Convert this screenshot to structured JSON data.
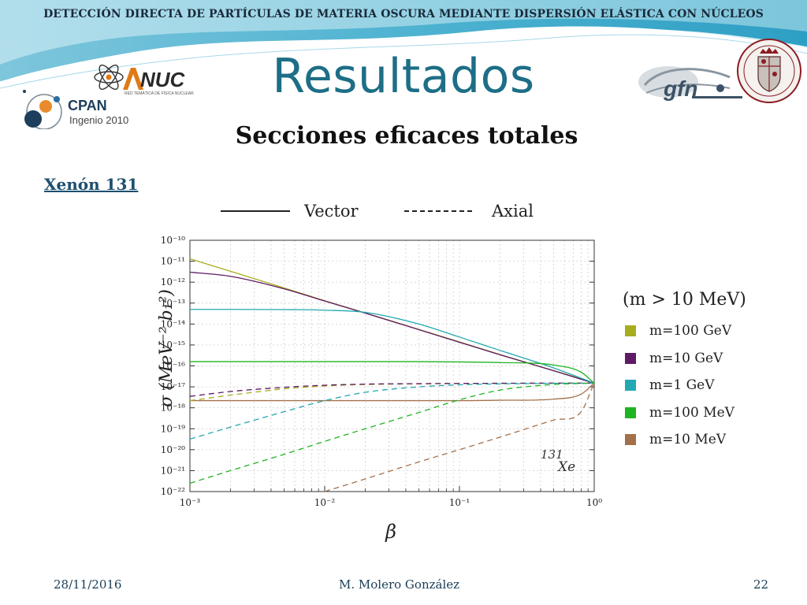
{
  "header": {
    "banner": "DETECCIÓN DIRECTA DE PARTÍCULAS DE MATERIA OSCURA MEDIANTE DISPERSIÓN ELÁSTICA CON NÚCLEOS",
    "title": "Resultados",
    "subtitle": "Secciones eficaces totales",
    "section": "Xenón 131"
  },
  "logos": {
    "anuc": {
      "text": "NUC",
      "tagline": "RED TEMÁTICA DE FÍSICA NUCLEAR"
    },
    "cpan": {
      "name": "CPAN",
      "tagline": "Ingenio 2010"
    },
    "gfn": {
      "text": "gfn"
    }
  },
  "style_legend": {
    "solid": "Vector",
    "dashed": "Axial"
  },
  "mass_legend": {
    "title": "(m > 10 MeV)",
    "items": [
      {
        "label": "m=100 GeV",
        "color": "#a8ad1e"
      },
      {
        "label": "m=10 GeV",
        "color": "#5e1a66"
      },
      {
        "label": "m=1 GeV",
        "color": "#22a8b2"
      },
      {
        "label": "m=100 MeV",
        "color": "#1fb422"
      },
      {
        "label": "m=10 MeV",
        "color": "#a4704a"
      }
    ]
  },
  "footer": {
    "date": "28/11/2016",
    "author": "M. Molero González",
    "page": "22"
  },
  "chart_data": {
    "type": "line",
    "x_scale": "log",
    "y_scale": "log",
    "xlim": [
      0.001,
      1
    ],
    "ylim": [
      1e-22,
      1e-10
    ],
    "xlabel": "β",
    "ylabel": "σ (MeV⁻² b₁²)",
    "annotation": {
      "mass_number": "131",
      "symbol": "Xe"
    },
    "x_ticks": [
      "10⁻³",
      "10⁻²",
      "10⁻¹",
      "10⁰"
    ],
    "y_ticks": [
      "10⁻²²",
      "10⁻²¹",
      "10⁻²⁰",
      "10⁻¹⁹",
      "10⁻¹⁸",
      "10⁻¹⁷",
      "10⁻¹⁶",
      "10⁻¹⁵",
      "10⁻¹⁴",
      "10⁻¹³",
      "10⁻¹²",
      "10⁻¹¹",
      "10⁻¹⁰"
    ],
    "x": [
      0.001,
      0.002,
      0.005,
      0.01,
      0.02,
      0.05,
      0.1,
      0.2,
      0.5,
      0.8,
      1.0
    ],
    "series": [
      {
        "name": "m=100 GeV",
        "style": "Vector",
        "color": "#a8ad1e",
        "y": [
          1.3e-11,
          3.3e-12,
          5.3e-13,
          1.3e-13,
          3.4e-14,
          5.5e-15,
          1.4e-15,
          3.5e-16,
          6e-17,
          2.4e-17,
          1.5e-17
        ]
      },
      {
        "name": "m=10 GeV",
        "style": "Vector",
        "color": "#5e1a66",
        "y": [
          3e-12,
          1.9e-12,
          4.8e-13,
          1.25e-13,
          3.3e-14,
          5.4e-15,
          1.35e-15,
          3.4e-16,
          5.9e-17,
          2.3e-17,
          1.5e-17
        ]
      },
      {
        "name": "m=1 GeV",
        "style": "Vector",
        "color": "#22a8b2",
        "y": [
          5e-14,
          5e-14,
          4.9e-14,
          4.6e-14,
          3.6e-14,
          1e-14,
          2.4e-15,
          5.5e-16,
          8e-17,
          2.6e-17,
          1.5e-17
        ]
      },
      {
        "name": "m=100 MeV",
        "style": "Vector",
        "color": "#1fb422",
        "y": [
          1.6e-16,
          1.6e-16,
          1.6e-16,
          1.6e-16,
          1.6e-16,
          1.6e-16,
          1.55e-16,
          1.45e-16,
          1.1e-16,
          5e-17,
          1.5e-17
        ]
      },
      {
        "name": "m=10 MeV",
        "style": "Vector",
        "color": "#a4704a",
        "y": [
          2.2e-18,
          2.2e-18,
          2.2e-18,
          2.2e-18,
          2.2e-18,
          2.2e-18,
          2.2e-18,
          2.3e-18,
          2.6e-18,
          4.5e-18,
          1.5e-17
        ]
      },
      {
        "name": "m=100 GeV",
        "style": "Axial",
        "color": "#a8ad1e",
        "y": [
          2.2e-18,
          4e-18,
          8e-18,
          1.1e-17,
          1.3e-17,
          1.4e-17,
          1.45e-17,
          1.48e-17,
          1.5e-17,
          1.5e-17,
          1.5e-17
        ]
      },
      {
        "name": "m=10 GeV",
        "style": "Axial",
        "color": "#5e1a66",
        "y": [
          3.5e-18,
          6e-18,
          9.5e-18,
          1.2e-17,
          1.35e-17,
          1.42e-17,
          1.46e-17,
          1.48e-17,
          1.5e-17,
          1.5e-17,
          1.5e-17
        ]
      },
      {
        "name": "m=1 GeV",
        "style": "Axial",
        "color": "#22a8b2",
        "y": [
          3.2e-20,
          1.2e-19,
          6.5e-19,
          2.2e-18,
          5.5e-18,
          1e-17,
          1.25e-17,
          1.38e-17,
          1.46e-17,
          1.49e-17,
          1.5e-17
        ]
      },
      {
        "name": "m=100 MeV",
        "style": "Axial",
        "color": "#1fb422",
        "y": [
          2.5e-22,
          1e-21,
          6e-21,
          2.5e-20,
          1e-19,
          6e-19,
          2.4e-18,
          7e-18,
          1.3e-17,
          1.45e-17,
          1.5e-17
        ]
      },
      {
        "name": "m=10 MeV",
        "style": "Axial",
        "color": "#a4704a",
        "y": [
          null,
          null,
          null,
          1e-22,
          4e-22,
          2.6e-21,
          1e-20,
          4e-20,
          2.6e-19,
          6.5e-19,
          1.5e-17
        ]
      }
    ]
  }
}
